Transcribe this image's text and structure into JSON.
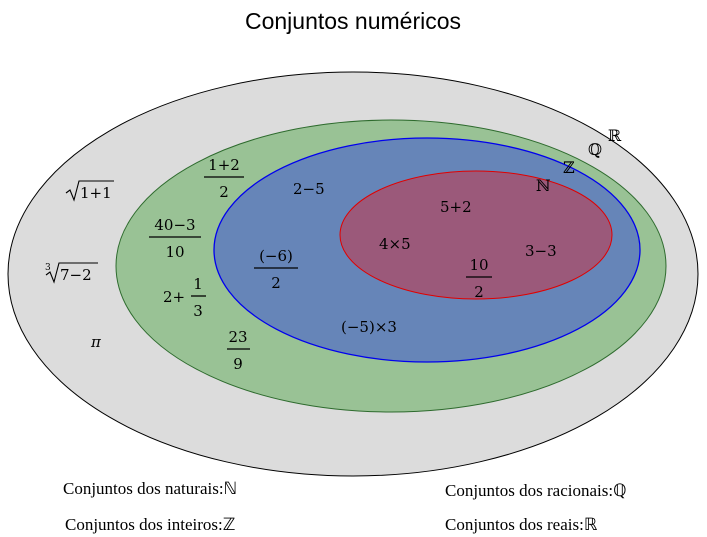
{
  "title": "Conjuntos numéricos",
  "sets": {
    "reais": {
      "symbol": "ℝ",
      "color": "#dcdcdc"
    },
    "racionais": {
      "symbol": "ℚ",
      "color": "#99c295"
    },
    "inteiros": {
      "symbol": "ℤ",
      "color": "#6685b8"
    },
    "naturais": {
      "symbol": "ℕ",
      "color": "#9b597a"
    }
  },
  "elements": {
    "reais": {
      "sqrt": "1+1",
      "cbrt_index": "3",
      "cbrt": "7−2",
      "pi": "π"
    },
    "racionais": {
      "f1_num": "1+2",
      "f1_den": "2",
      "f2_num": "40−3",
      "f2_den": "10",
      "mixed_whole": "2+",
      "mixed_num": "1",
      "mixed_den": "3",
      "f3_num": "23",
      "f3_den": "9"
    },
    "inteiros": {
      "e1": "2−5",
      "f1_num": "(−6)",
      "f1_den": "2",
      "e2": "(−5)×3"
    },
    "naturais": {
      "e1": "5+2",
      "e2": "4×5",
      "e3": "3−3",
      "f1_num": "10",
      "f1_den": "2"
    }
  },
  "legend": {
    "naturais": "Conjuntos dos naturais:ℕ",
    "inteiros": "Conjuntos dos inteiros:ℤ",
    "racionais": "Conjuntos dos racionais:ℚ",
    "reais": "Conjuntos dos reais:ℝ"
  }
}
